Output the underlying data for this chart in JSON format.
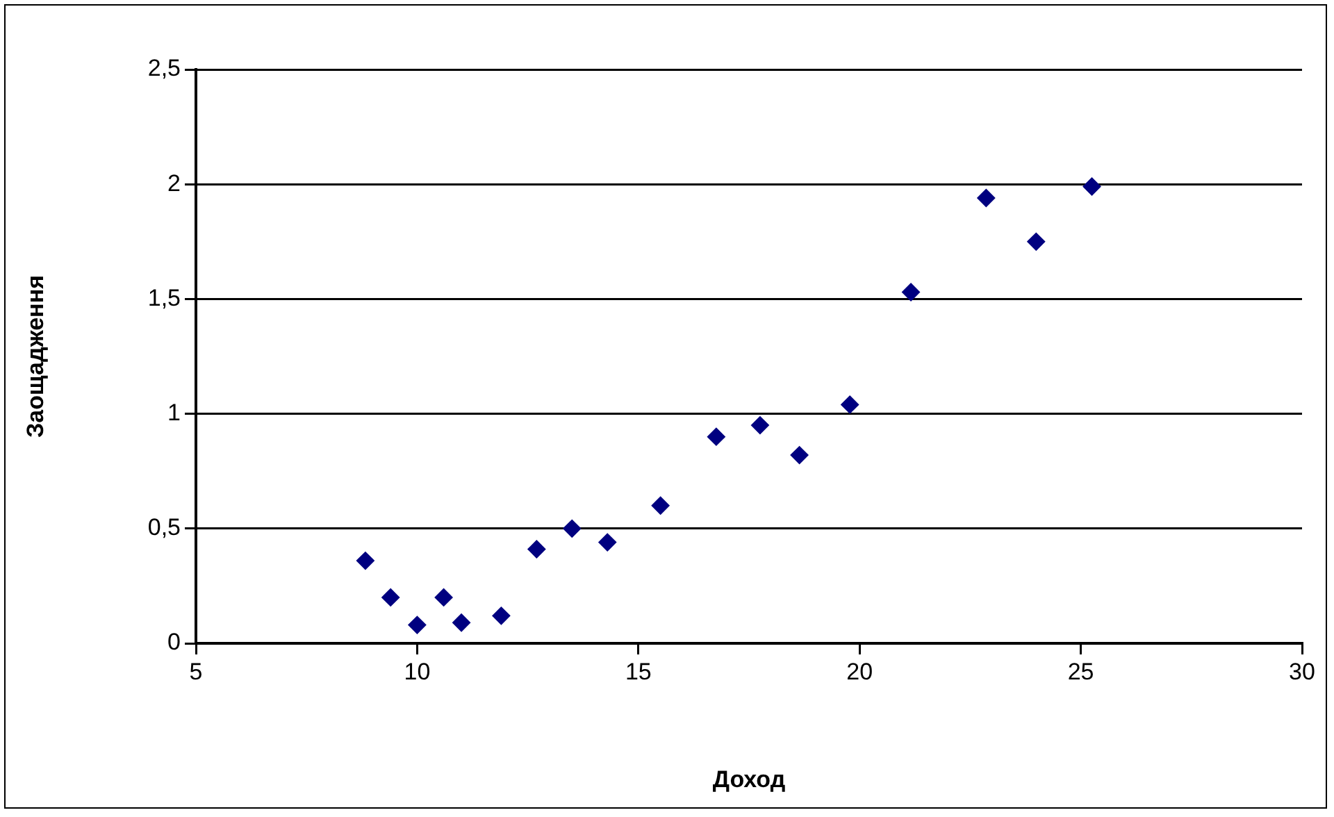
{
  "chart_data": {
    "type": "scatter",
    "xlabel": "Доход",
    "ylabel": "Заощадження",
    "x": [
      8.83,
      9.4,
      10.0,
      10.6,
      11.0,
      11.9,
      12.7,
      13.5,
      14.3,
      15.5,
      16.76,
      17.75,
      18.64,
      19.78,
      21.16,
      22.86,
      23.99,
      25.25
    ],
    "series": [
      {
        "color": "#000080",
        "values": [
          0.36,
          0.2,
          0.08,
          0.2,
          0.09,
          0.12,
          0.41,
          0.5,
          0.44,
          0.6,
          0.9,
          0.95,
          0.82,
          1.04,
          1.53,
          1.94,
          1.75,
          1.99
        ]
      }
    ],
    "xlim": [
      5,
      30
    ],
    "xticks": [
      5,
      10,
      15,
      20,
      25,
      30
    ],
    "ylim": [
      0,
      2.5
    ],
    "yticks": [
      0,
      {
        "value": 0.5,
        "label": "0,5"
      },
      1,
      {
        "value": 1.5,
        "label": "1,5"
      },
      2,
      {
        "value": 2.5,
        "label": "2,5"
      }
    ],
    "grid": "y",
    "legend": false,
    "marker": "diamond"
  }
}
